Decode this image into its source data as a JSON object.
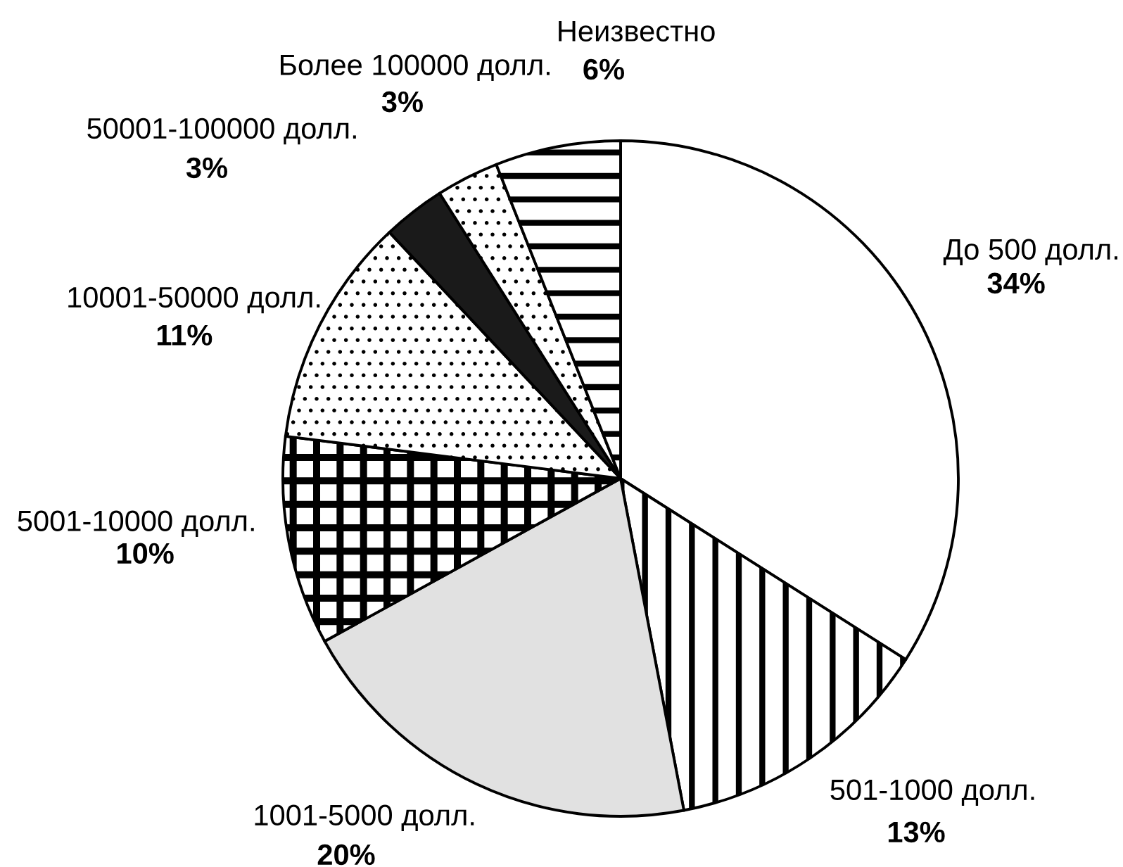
{
  "chart_data": {
    "type": "pie",
    "categories": [
      "До 500 долл.",
      "501-1000 долл.",
      "1001-5000 долл.",
      "5001-10000 долл.",
      "10001-50000 долл.",
      "50001-100000 долл.",
      "Более 100000 долл.",
      "Неизвестно"
    ],
    "values": [
      34,
      13,
      20,
      10,
      11,
      3,
      3,
      6
    ],
    "colors": [
      "#ffffff",
      "#000000",
      "#e1e1e1",
      "#000000",
      "#000000",
      "#1a1a1a",
      "#000000",
      "#000000"
    ],
    "value_labels": [
      "34%",
      "13%",
      "20%",
      "10%",
      "11%",
      "3%",
      "3%",
      "6%"
    ]
  }
}
